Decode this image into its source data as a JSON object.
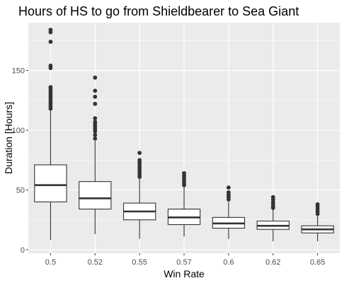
{
  "chart_data": {
    "type": "box",
    "title": "Hours of HS to go from Shieldbearer to Sea Giant",
    "xlabel": "Win Rate",
    "ylabel": "Duration [Hours]",
    "ylim": [
      -3,
      190
    ],
    "yticks": [
      0,
      50,
      100,
      150
    ],
    "grid": true,
    "panel_background": "#ebebeb",
    "grid_color": "#ffffff",
    "box_fill": "#ffffff",
    "line_color": "#333333",
    "categories": [
      "0.5",
      "0.52",
      "0.55",
      "0.57",
      "0.6",
      "0.62",
      "0.65"
    ],
    "boxes": [
      {
        "category": "0.5",
        "min": 8,
        "q1": 40,
        "median": 54,
        "q3": 71,
        "max": 117,
        "outliers": [
          118,
          120,
          122,
          124,
          126,
          128,
          130,
          132,
          134,
          136,
          152,
          154,
          174,
          182,
          184
        ]
      },
      {
        "category": "0.52",
        "min": 13,
        "q1": 34,
        "median": 43,
        "q3": 57,
        "max": 91,
        "outliers": [
          93,
          96,
          99,
          101,
          103,
          105,
          107,
          110,
          122,
          128,
          133,
          144
        ]
      },
      {
        "category": "0.55",
        "min": 9,
        "q1": 25,
        "median": 32,
        "q3": 39,
        "max": 60,
        "outliers": [
          61,
          63,
          65,
          67,
          69,
          71,
          73,
          75,
          81
        ]
      },
      {
        "category": "0.57",
        "min": 11,
        "q1": 21,
        "median": 27,
        "q3": 34,
        "max": 53,
        "outliers": [
          54,
          56,
          58,
          60,
          62,
          64
        ]
      },
      {
        "category": "0.6",
        "min": 9,
        "q1": 18,
        "median": 22,
        "q3": 27,
        "max": 40,
        "outliers": [
          42,
          44,
          46,
          48,
          52
        ]
      },
      {
        "category": "0.62",
        "min": 7,
        "q1": 17,
        "median": 20,
        "q3": 24,
        "max": 34,
        "outliers": [
          35,
          36,
          38,
          40,
          42,
          44
        ]
      },
      {
        "category": "0.65",
        "min": 7,
        "q1": 14,
        "median": 17,
        "q3": 20,
        "max": 29,
        "outliers": [
          30,
          32,
          34,
          36,
          38
        ]
      }
    ]
  }
}
